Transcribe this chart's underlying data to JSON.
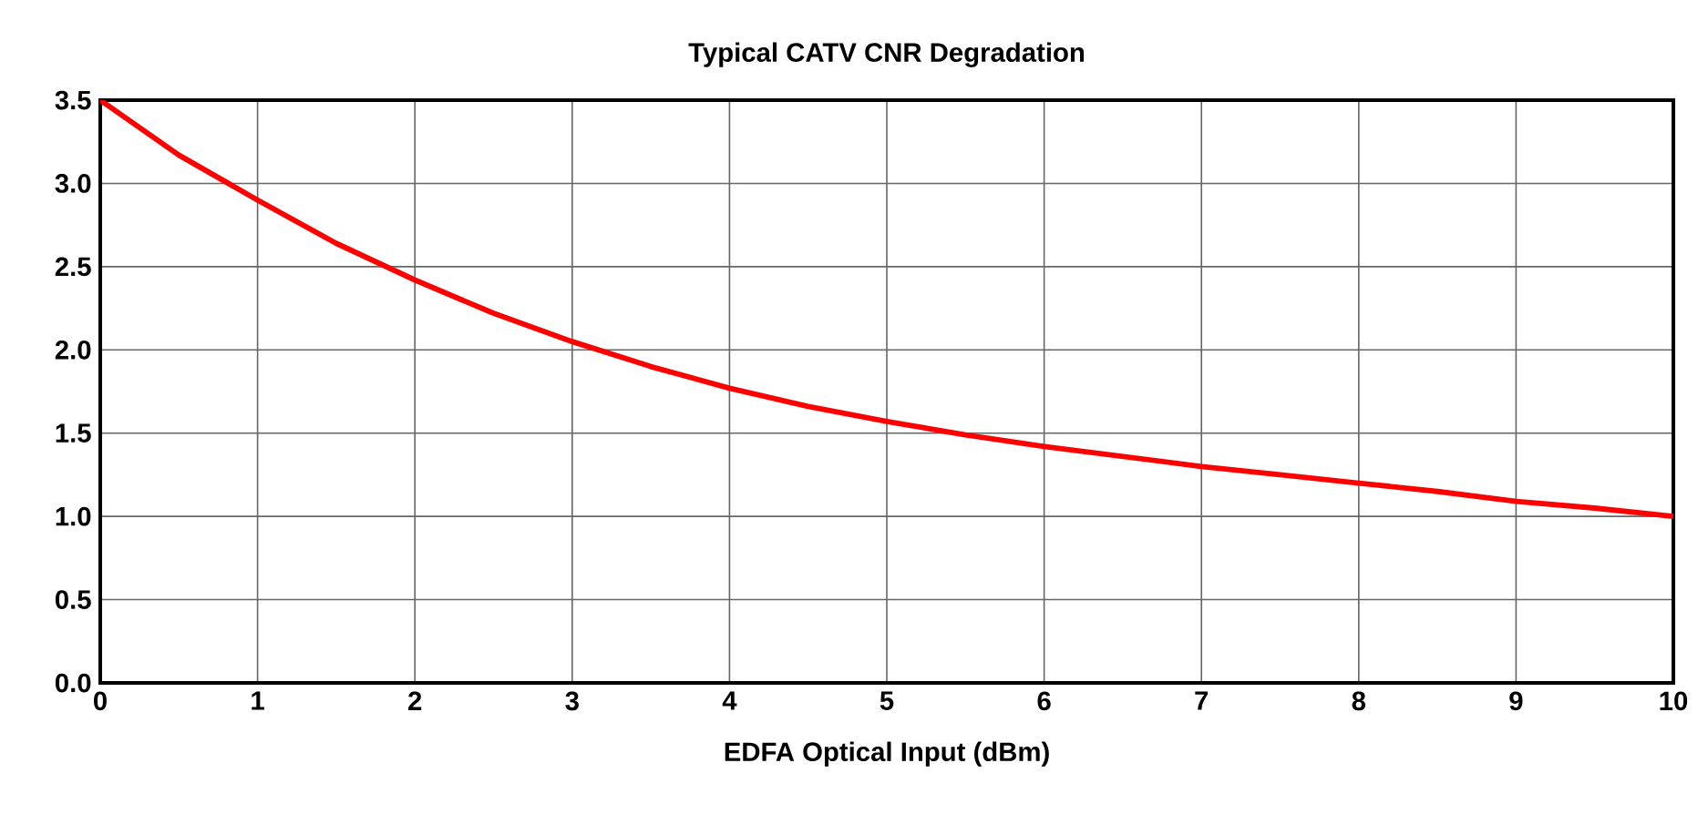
{
  "chart_data": {
    "type": "line",
    "title": "Typical CATV CNR Degradation",
    "xlabel": "EDFA Optical Input (dBm)",
    "x": [
      0,
      0.5,
      1,
      1.5,
      2,
      2.5,
      3,
      3.5,
      4,
      4.5,
      5,
      5.5,
      6,
      6.5,
      7,
      7.5,
      8,
      8.5,
      9,
      9.5,
      10
    ],
    "series": [
      {
        "color": "#ff0000",
        "values": [
          3.5,
          3.17,
          2.9,
          2.64,
          2.42,
          2.22,
          2.05,
          1.9,
          1.77,
          1.66,
          1.57,
          1.49,
          1.42,
          1.36,
          1.3,
          1.25,
          1.2,
          1.15,
          1.09,
          1.05,
          1.0
        ]
      }
    ],
    "xlim": [
      0,
      10
    ],
    "ylim": [
      0,
      3.5
    ],
    "xticks": [
      0,
      1,
      2,
      3,
      4,
      5,
      6,
      7,
      8,
      9,
      10
    ],
    "yticks": [
      {
        "value": 0,
        "label": "0.0"
      },
      {
        "value": 0.5,
        "label": "0.5"
      },
      {
        "value": 1,
        "label": "1.0"
      },
      {
        "value": 1.5,
        "label": "1.5"
      },
      {
        "value": 2,
        "label": "2.0"
      },
      {
        "value": 2.5,
        "label": "2.5"
      },
      {
        "value": 3,
        "label": "3.0"
      },
      {
        "value": 3.5,
        "label": "3.5"
      }
    ],
    "grid": true,
    "marker": "none",
    "line_style": "solid"
  }
}
